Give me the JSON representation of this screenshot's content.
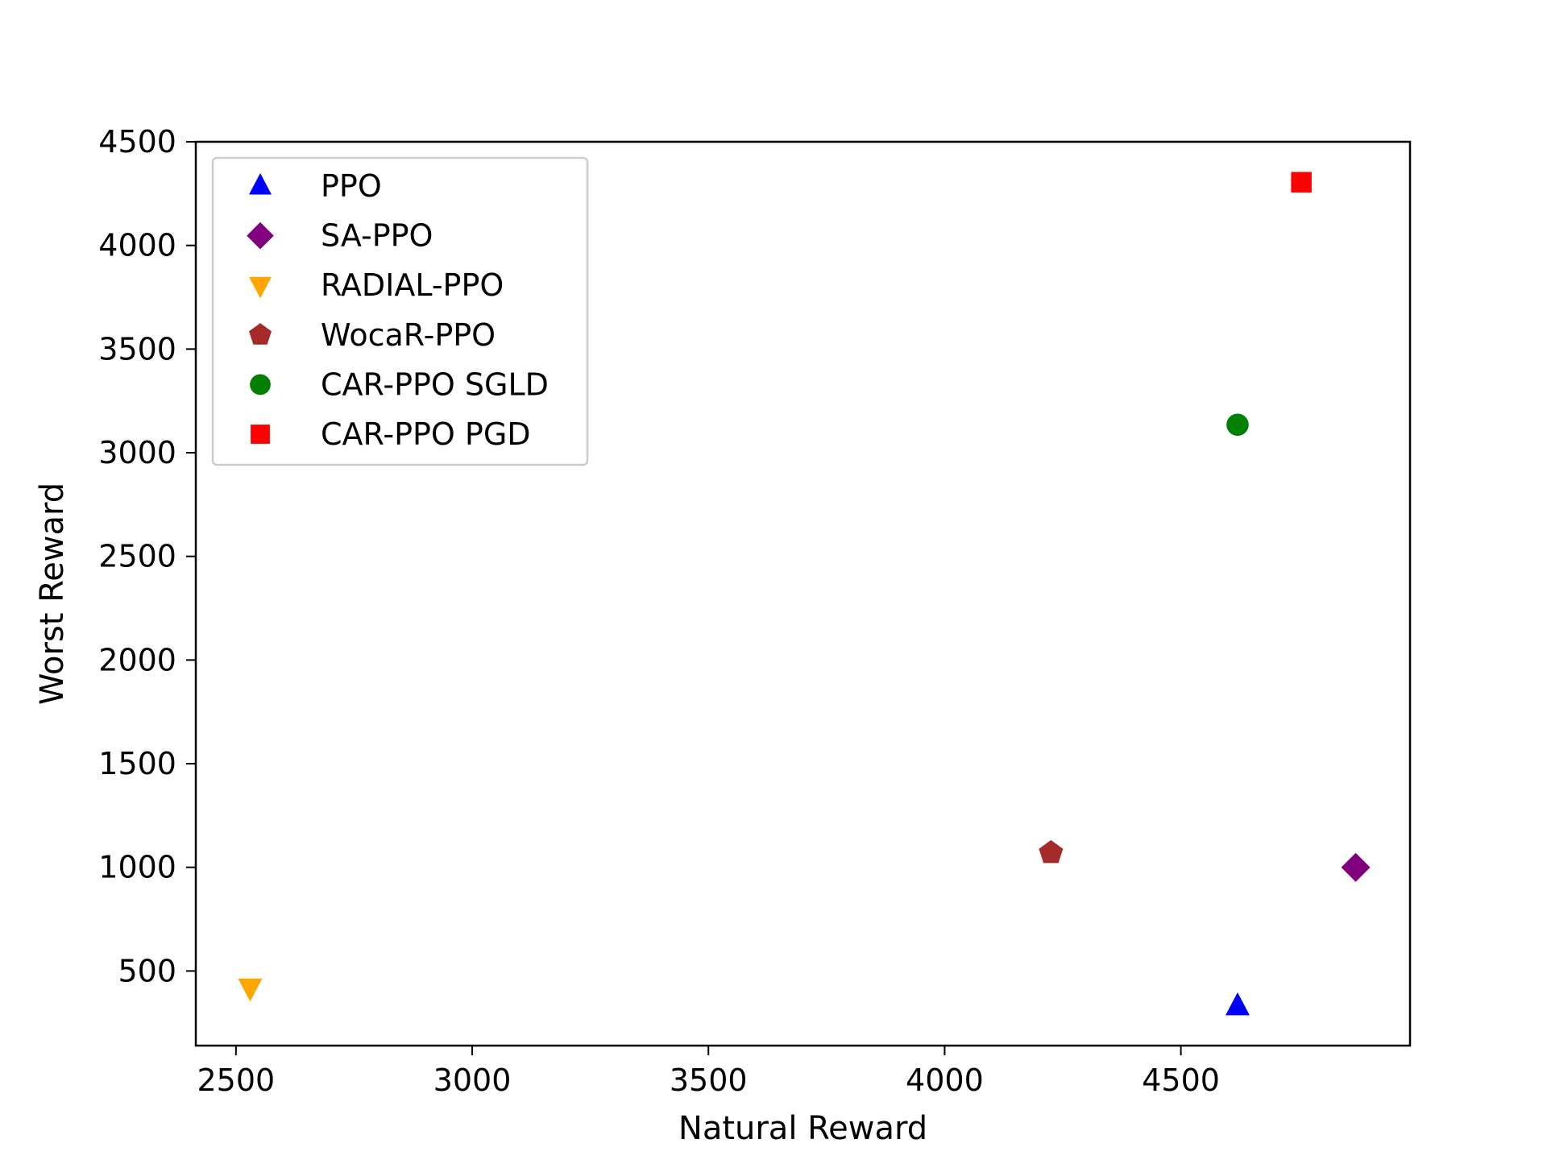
{
  "chart_data": {
    "type": "scatter",
    "xlabel": "Natural Reward",
    "ylabel": "Worst Reward",
    "xlim": [
      2415,
      4985
    ],
    "ylim": [
      140,
      4500
    ],
    "xticks": [
      2500,
      3000,
      3500,
      4000,
      4500
    ],
    "yticks": [
      500,
      1000,
      1500,
      2000,
      2500,
      3000,
      3500,
      4000,
      4500
    ],
    "grid": false,
    "legend_position": "upper-left",
    "series": [
      {
        "name": "PPO",
        "marker": "triangle-up",
        "color": "#0000ff",
        "x": [
          4620
        ],
        "y": [
          330
        ]
      },
      {
        "name": "SA-PPO",
        "marker": "diamond",
        "color": "#800080",
        "x": [
          4870
        ],
        "y": [
          1000
        ]
      },
      {
        "name": "RADIAL-PPO",
        "marker": "triangle-down",
        "color": "#ffa500",
        "x": [
          2530
        ],
        "y": [
          420
        ]
      },
      {
        "name": "WocaR-PPO",
        "marker": "pentagon",
        "color": "#a52a2a",
        "x": [
          4225
        ],
        "y": [
          1070
        ]
      },
      {
        "name": "CAR-PPO SGLD",
        "marker": "circle",
        "color": "#008000",
        "x": [
          4620
        ],
        "y": [
          3135
        ]
      },
      {
        "name": "CAR-PPO PGD",
        "marker": "square",
        "color": "#ff0000",
        "x": [
          4755
        ],
        "y": [
          4305
        ]
      }
    ]
  }
}
